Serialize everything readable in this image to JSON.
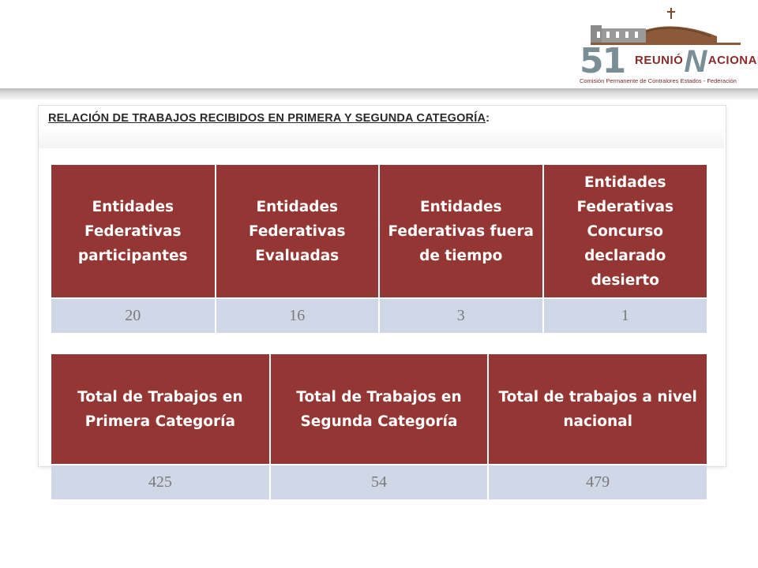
{
  "logo": {
    "number": "51",
    "title_part1": "REUNIÓ",
    "title_n": "N",
    "title_part2": "ACIONAL",
    "subtitle": "Comisión Permanente de Contralores Estados - Federación"
  },
  "section": {
    "title": "RELACIÓN DE TRABAJOS RECIBIDOS EN PRIMERA Y SEGUNDA CATEGORÍA",
    "colon": ":"
  },
  "table1": {
    "headers": [
      "Entidades Federativas participantes",
      "Entidades Federativas Evaluadas",
      "Entidades Federativas fuera de tiempo",
      "Entidades Federativas Concurso declarado desierto"
    ],
    "values": [
      "20",
      "16",
      "3",
      "1"
    ]
  },
  "table2": {
    "headers": [
      "Total de Trabajos en Primera Categoría",
      "Total de Trabajos en Segunda Categoría",
      "Total de trabajos a nivel nacional"
    ],
    "values": [
      "425",
      "54",
      "479"
    ]
  },
  "colors": {
    "header_red": "#943634",
    "value_blue": "#d0d8e8",
    "value_text": "#7a7a7a"
  }
}
